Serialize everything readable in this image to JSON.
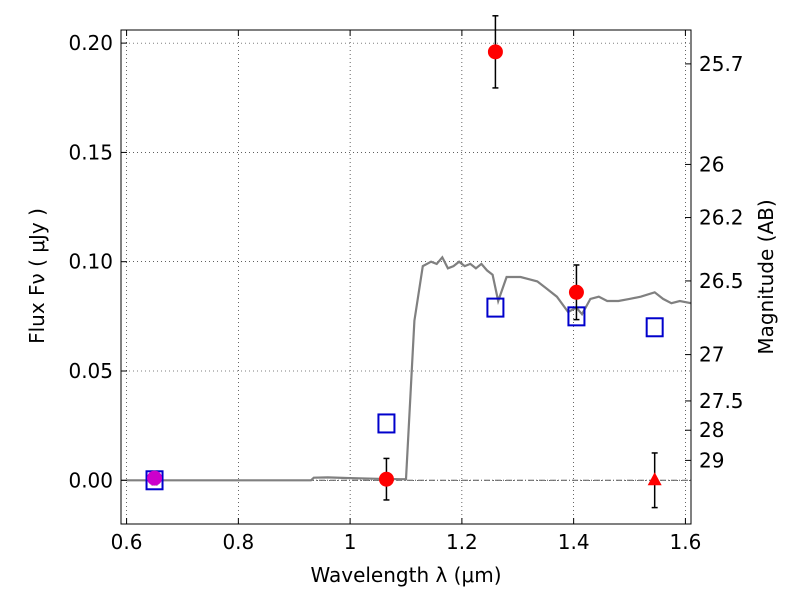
{
  "chart_data": {
    "type": "scatter",
    "xlabel": "Wavelength  λ (μm)",
    "ylabel": "Flux  Fν  ( μJy )",
    "y2label": "Magnitude (AB)",
    "xlim": [
      0.59,
      1.61
    ],
    "ylim": [
      -0.02,
      0.206
    ],
    "grid": true,
    "x_ticks": [
      {
        "value": 0.6,
        "label": "0.6"
      },
      {
        "value": 0.8,
        "label": "0.8"
      },
      {
        "value": 1.0,
        "label": "1"
      },
      {
        "value": 1.2,
        "label": "1.2"
      },
      {
        "value": 1.4,
        "label": "1.4"
      },
      {
        "value": 1.6,
        "label": "1.6"
      }
    ],
    "y_ticks": [
      {
        "value": 0.0,
        "label": "0.00"
      },
      {
        "value": 0.05,
        "label": "0.05"
      },
      {
        "value": 0.1,
        "label": "0.10"
      },
      {
        "value": 0.15,
        "label": "0.15"
      },
      {
        "value": 0.2,
        "label": "0.20"
      }
    ],
    "mag_ticks": [
      {
        "label": "25.7",
        "flux": 0.1905
      },
      {
        "label": "26",
        "flux": 0.1445
      },
      {
        "label": "26.2",
        "flux": 0.1202
      },
      {
        "label": "26.5",
        "flux": 0.0912
      },
      {
        "label": "27",
        "flux": 0.0575
      },
      {
        "label": "27.5",
        "flux": 0.0363
      },
      {
        "label": "28",
        "flux": 0.0229
      },
      {
        "label": "29",
        "flux": 0.0091
      }
    ],
    "series": [
      {
        "kind": "model-line",
        "color": "#808080",
        "x": [
          0.6,
          0.93,
          0.935,
          0.96,
          1.0,
          1.05,
          1.09,
          1.1,
          1.115,
          1.13,
          1.145,
          1.155,
          1.165,
          1.175,
          1.185,
          1.195,
          1.205,
          1.215,
          1.225,
          1.235,
          1.245,
          1.255,
          1.265,
          1.28,
          1.29,
          1.305,
          1.32,
          1.335,
          1.35,
          1.37,
          1.39,
          1.405,
          1.415,
          1.43,
          1.445,
          1.46,
          1.48,
          1.5,
          1.52,
          1.545,
          1.56,
          1.575,
          1.59,
          1.61
        ],
        "y": [
          0.0,
          0.0,
          0.0012,
          0.0013,
          0.001,
          0.0007,
          0.0005,
          0.0005,
          0.073,
          0.098,
          0.1,
          0.099,
          0.102,
          0.097,
          0.098,
          0.1,
          0.098,
          0.099,
          0.097,
          0.099,
          0.096,
          0.094,
          0.082,
          0.093,
          0.093,
          0.093,
          0.092,
          0.091,
          0.088,
          0.084,
          0.077,
          0.079,
          0.076,
          0.083,
          0.084,
          0.082,
          0.082,
          0.083,
          0.084,
          0.086,
          0.083,
          0.081,
          0.082,
          0.081
        ]
      },
      {
        "kind": "observed-points",
        "color": "#ff0000",
        "points": [
          {
            "x": 0.65,
            "y": 0.001,
            "err": 0.003,
            "color": "#cc00cc"
          },
          {
            "x": 1.065,
            "y": 0.0005,
            "err": 0.0095
          },
          {
            "x": 1.26,
            "y": 0.196,
            "err": 0.0165
          },
          {
            "x": 1.405,
            "y": 0.086,
            "err": 0.0125
          }
        ]
      },
      {
        "kind": "upper-limit",
        "color": "#ff0000",
        "points": [
          {
            "x": 1.545,
            "y": 0.0,
            "err": 0.0125
          }
        ]
      },
      {
        "kind": "model-photometry",
        "color": "#0000cc",
        "points": [
          {
            "x": 0.65,
            "y": 0.0
          },
          {
            "x": 1.065,
            "y": 0.026
          },
          {
            "x": 1.26,
            "y": 0.079
          },
          {
            "x": 1.405,
            "y": 0.075
          },
          {
            "x": 1.545,
            "y": 0.07
          }
        ]
      }
    ]
  }
}
